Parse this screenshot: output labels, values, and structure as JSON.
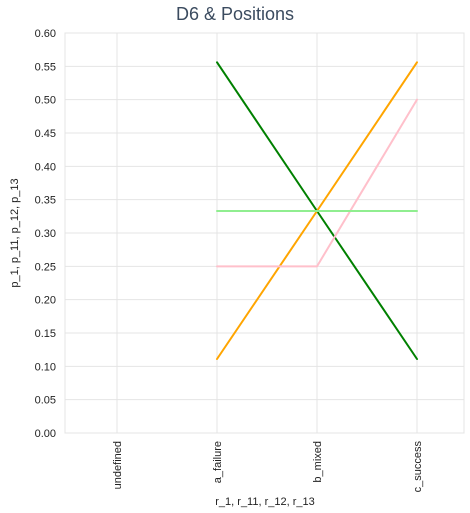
{
  "chart_data": {
    "type": "line",
    "title": "D6 & Positions",
    "xlabel": "r_1, r_11, r_12, r_13",
    "ylabel": "p_1, p_11, p_12, p_13",
    "categories": [
      "undefined",
      "a_failure",
      "b_mixed",
      "c_success"
    ],
    "ylim": [
      0,
      0.6
    ],
    "yticks": [
      "0.00",
      "0.05",
      "0.10",
      "0.15",
      "0.20",
      "0.25",
      "0.30",
      "0.35",
      "0.40",
      "0.45",
      "0.50",
      "0.55",
      "0.60"
    ],
    "grid": true,
    "legend": "none",
    "series": [
      {
        "name": "",
        "color": "#008000",
        "values": [
          null,
          0.556,
          0.333,
          0.111
        ]
      },
      {
        "name": "",
        "color": "#ffa500",
        "values": [
          null,
          0.111,
          0.333,
          0.556
        ]
      },
      {
        "name": "",
        "color": "#ffc0cb",
        "values": [
          null,
          0.25,
          0.25,
          0.5
        ]
      },
      {
        "name": "",
        "color": "#90ee90",
        "values": [
          null,
          0.333,
          0.333,
          0.333
        ]
      }
    ]
  }
}
